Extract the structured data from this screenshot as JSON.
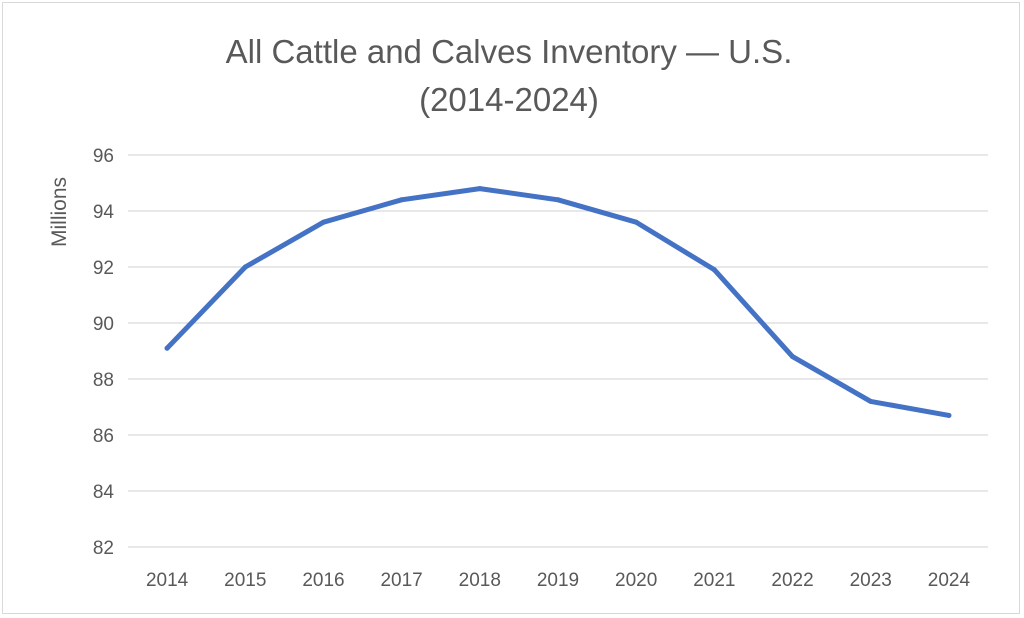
{
  "chart_data": {
    "type": "line",
    "title_line1": "All Cattle and Calves Inventory — U.S.",
    "title_line2": "(2014-2024)",
    "ylabel": "Millions",
    "xlabel": "",
    "x": [
      "2014",
      "2015",
      "2016",
      "2017",
      "2018",
      "2019",
      "2020",
      "2021",
      "2022",
      "2023",
      "2024"
    ],
    "series": [
      {
        "values": [
          89.1,
          92.0,
          93.6,
          94.4,
          94.8,
          94.4,
          93.6,
          91.9,
          88.8,
          87.2,
          86.7
        ],
        "color": "#4472c4"
      }
    ],
    "ylim": [
      82,
      96
    ],
    "yticks": [
      82,
      84,
      86,
      88,
      90,
      92,
      94,
      96
    ],
    "grid": true,
    "gridColor": "#d9d9d9"
  }
}
